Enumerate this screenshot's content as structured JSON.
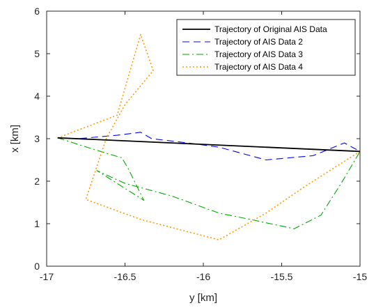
{
  "chart_data": {
    "type": "line",
    "xlabel": "y [km]",
    "ylabel": "x [km]",
    "xlim": [
      -17,
      -15
    ],
    "ylim": [
      0,
      6
    ],
    "xticks": [
      -17,
      -16.5,
      -16,
      -15.5,
      -15
    ],
    "xtick_labels": [
      "-17",
      "-16.5",
      "-16",
      "-15.5",
      "-15"
    ],
    "yticks": [
      0,
      1,
      2,
      3,
      4,
      5,
      6
    ],
    "ytick_labels": [
      "0",
      "1",
      "2",
      "3",
      "4",
      "5",
      "6"
    ],
    "grid": false,
    "legend_position": "top-right",
    "series": [
      {
        "name": "Trajectory of Original AIS Data",
        "color": "#000000",
        "style": "solid",
        "points": [
          [
            -16.93,
            3.02
          ],
          [
            -15.0,
            2.7
          ]
        ]
      },
      {
        "name": "Trajectory of AIS Data 2",
        "color": "#0000ff",
        "style": "dashed",
        "points": [
          [
            -16.93,
            3.02
          ],
          [
            -16.8,
            3.0
          ],
          [
            -16.55,
            3.08
          ],
          [
            -16.4,
            3.15
          ],
          [
            -16.33,
            3.0
          ],
          [
            -16.1,
            2.9
          ],
          [
            -15.9,
            2.8
          ],
          [
            -15.6,
            2.5
          ],
          [
            -15.3,
            2.6
          ],
          [
            -15.1,
            2.9
          ],
          [
            -15.0,
            2.7
          ]
        ]
      },
      {
        "name": "Trajectory of AIS Data 3",
        "color": "#00aa00",
        "style": "dashdot",
        "points": [
          [
            -16.93,
            3.02
          ],
          [
            -16.7,
            2.75
          ],
          [
            -16.52,
            2.55
          ],
          [
            -16.48,
            2.3
          ],
          [
            -16.38,
            1.55
          ],
          [
            -16.68,
            2.25
          ],
          [
            -16.5,
            1.95
          ],
          [
            -16.2,
            1.65
          ],
          [
            -15.9,
            1.25
          ],
          [
            -15.7,
            1.1
          ],
          [
            -15.42,
            0.88
          ],
          [
            -15.25,
            1.2
          ],
          [
            -15.12,
            1.95
          ],
          [
            -15.0,
            2.7
          ]
        ]
      },
      {
        "name": "Trajectory of AIS Data 4",
        "color": "#ff9900",
        "style": "dotted",
        "points": [
          [
            -16.93,
            3.02
          ],
          [
            -16.55,
            3.55
          ],
          [
            -16.4,
            5.45
          ],
          [
            -16.32,
            4.6
          ],
          [
            -16.5,
            3.8
          ],
          [
            -16.62,
            3.0
          ],
          [
            -16.75,
            1.57
          ],
          [
            -16.4,
            1.1
          ],
          [
            -15.9,
            0.62
          ],
          [
            -15.6,
            1.25
          ],
          [
            -15.35,
            1.88
          ],
          [
            -15.0,
            2.7
          ]
        ]
      }
    ]
  }
}
